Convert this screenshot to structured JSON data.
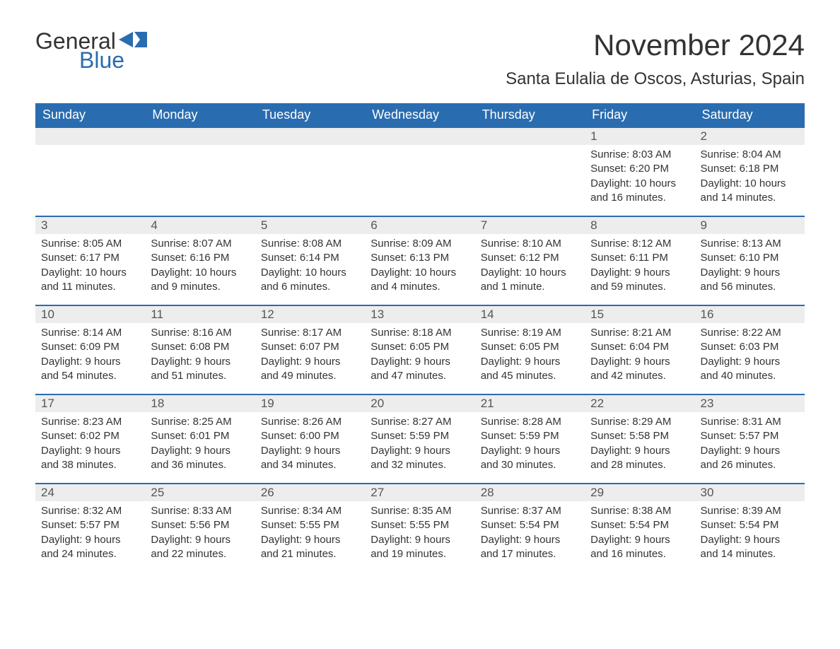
{
  "logo": {
    "text_general": "General",
    "text_blue": "Blue",
    "flag_color": "#2a6cb0"
  },
  "header": {
    "month_title": "November 2024",
    "location": "Santa Eulalia de Oscos, Asturias, Spain"
  },
  "colors": {
    "header_bg": "#2a6cb0",
    "header_text": "#ffffff",
    "daynum_bg": "#ededed",
    "border": "#2a6cb0",
    "body_text": "#333333",
    "background": "#ffffff"
  },
  "weekdays": [
    "Sunday",
    "Monday",
    "Tuesday",
    "Wednesday",
    "Thursday",
    "Friday",
    "Saturday"
  ],
  "first_day_index": 5,
  "days": [
    {
      "n": 1,
      "sunrise": "8:03 AM",
      "sunset": "6:20 PM",
      "daylight": "10 hours and 16 minutes."
    },
    {
      "n": 2,
      "sunrise": "8:04 AM",
      "sunset": "6:18 PM",
      "daylight": "10 hours and 14 minutes."
    },
    {
      "n": 3,
      "sunrise": "8:05 AM",
      "sunset": "6:17 PM",
      "daylight": "10 hours and 11 minutes."
    },
    {
      "n": 4,
      "sunrise": "8:07 AM",
      "sunset": "6:16 PM",
      "daylight": "10 hours and 9 minutes."
    },
    {
      "n": 5,
      "sunrise": "8:08 AM",
      "sunset": "6:14 PM",
      "daylight": "10 hours and 6 minutes."
    },
    {
      "n": 6,
      "sunrise": "8:09 AM",
      "sunset": "6:13 PM",
      "daylight": "10 hours and 4 minutes."
    },
    {
      "n": 7,
      "sunrise": "8:10 AM",
      "sunset": "6:12 PM",
      "daylight": "10 hours and 1 minute."
    },
    {
      "n": 8,
      "sunrise": "8:12 AM",
      "sunset": "6:11 PM",
      "daylight": "9 hours and 59 minutes."
    },
    {
      "n": 9,
      "sunrise": "8:13 AM",
      "sunset": "6:10 PM",
      "daylight": "9 hours and 56 minutes."
    },
    {
      "n": 10,
      "sunrise": "8:14 AM",
      "sunset": "6:09 PM",
      "daylight": "9 hours and 54 minutes."
    },
    {
      "n": 11,
      "sunrise": "8:16 AM",
      "sunset": "6:08 PM",
      "daylight": "9 hours and 51 minutes."
    },
    {
      "n": 12,
      "sunrise": "8:17 AM",
      "sunset": "6:07 PM",
      "daylight": "9 hours and 49 minutes."
    },
    {
      "n": 13,
      "sunrise": "8:18 AM",
      "sunset": "6:05 PM",
      "daylight": "9 hours and 47 minutes."
    },
    {
      "n": 14,
      "sunrise": "8:19 AM",
      "sunset": "6:05 PM",
      "daylight": "9 hours and 45 minutes."
    },
    {
      "n": 15,
      "sunrise": "8:21 AM",
      "sunset": "6:04 PM",
      "daylight": "9 hours and 42 minutes."
    },
    {
      "n": 16,
      "sunrise": "8:22 AM",
      "sunset": "6:03 PM",
      "daylight": "9 hours and 40 minutes."
    },
    {
      "n": 17,
      "sunrise": "8:23 AM",
      "sunset": "6:02 PM",
      "daylight": "9 hours and 38 minutes."
    },
    {
      "n": 18,
      "sunrise": "8:25 AM",
      "sunset": "6:01 PM",
      "daylight": "9 hours and 36 minutes."
    },
    {
      "n": 19,
      "sunrise": "8:26 AM",
      "sunset": "6:00 PM",
      "daylight": "9 hours and 34 minutes."
    },
    {
      "n": 20,
      "sunrise": "8:27 AM",
      "sunset": "5:59 PM",
      "daylight": "9 hours and 32 minutes."
    },
    {
      "n": 21,
      "sunrise": "8:28 AM",
      "sunset": "5:59 PM",
      "daylight": "9 hours and 30 minutes."
    },
    {
      "n": 22,
      "sunrise": "8:29 AM",
      "sunset": "5:58 PM",
      "daylight": "9 hours and 28 minutes."
    },
    {
      "n": 23,
      "sunrise": "8:31 AM",
      "sunset": "5:57 PM",
      "daylight": "9 hours and 26 minutes."
    },
    {
      "n": 24,
      "sunrise": "8:32 AM",
      "sunset": "5:57 PM",
      "daylight": "9 hours and 24 minutes."
    },
    {
      "n": 25,
      "sunrise": "8:33 AM",
      "sunset": "5:56 PM",
      "daylight": "9 hours and 22 minutes."
    },
    {
      "n": 26,
      "sunrise": "8:34 AM",
      "sunset": "5:55 PM",
      "daylight": "9 hours and 21 minutes."
    },
    {
      "n": 27,
      "sunrise": "8:35 AM",
      "sunset": "5:55 PM",
      "daylight": "9 hours and 19 minutes."
    },
    {
      "n": 28,
      "sunrise": "8:37 AM",
      "sunset": "5:54 PM",
      "daylight": "9 hours and 17 minutes."
    },
    {
      "n": 29,
      "sunrise": "8:38 AM",
      "sunset": "5:54 PM",
      "daylight": "9 hours and 16 minutes."
    },
    {
      "n": 30,
      "sunrise": "8:39 AM",
      "sunset": "5:54 PM",
      "daylight": "9 hours and 14 minutes."
    }
  ],
  "labels": {
    "sunrise": "Sunrise:",
    "sunset": "Sunset:",
    "daylight": "Daylight:"
  }
}
